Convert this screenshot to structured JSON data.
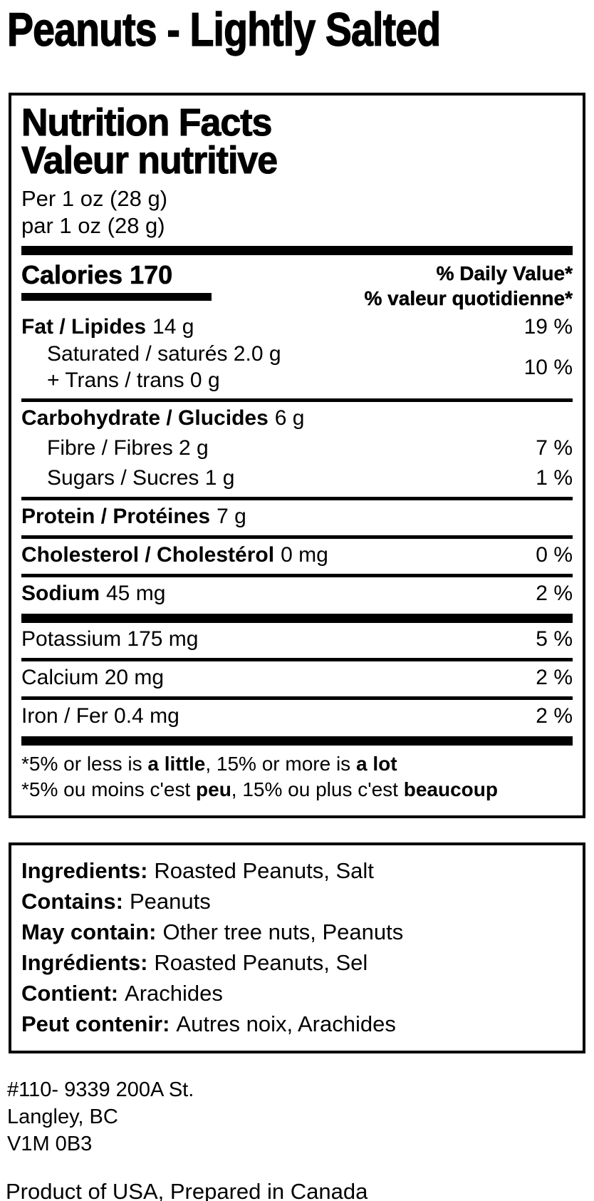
{
  "page": {
    "title": "Peanuts - Lightly Salted",
    "origin_line": "Product of USA, Prepared in Canada"
  },
  "nutrition": {
    "title_en": "Nutrition Facts",
    "title_fr": "Valeur nutritive",
    "serving_en": "Per 1 oz (28 g)",
    "serving_fr": "par 1 oz (28 g)",
    "calories_label": "Calories 170",
    "dv_header_en": "% Daily Value*",
    "dv_header_fr": "% valeur quotidienne*",
    "rows": {
      "fat": {
        "name": "Fat / Lipides",
        "amount": "14 g",
        "dv": "19 %"
      },
      "sat_trans": {
        "line1": "Saturated / saturés 2.0 g",
        "line2": "+ Trans / trans 0 g",
        "dv": "10 %"
      },
      "carb": {
        "name": "Carbohydrate / Glucides",
        "amount": "6 g"
      },
      "fibre": {
        "name": "Fibre / Fibres 2 g",
        "dv": "7 %"
      },
      "sugars": {
        "name": "Sugars / Sucres 1 g",
        "dv": "1 %"
      },
      "protein": {
        "name": "Protein / Protéines",
        "amount": "7 g"
      },
      "cholesterol": {
        "name": "Cholesterol / Cholestérol",
        "amount": "0 mg",
        "dv": "0 %"
      },
      "sodium": {
        "name": "Sodium",
        "amount": "45 mg",
        "dv": "2 %"
      },
      "potassium": {
        "name": "Potassium 175 mg",
        "dv": "5 %"
      },
      "calcium": {
        "name": "Calcium 20 mg",
        "dv": "2 %"
      },
      "iron": {
        "name": "Iron / Fer 0.4 mg",
        "dv": "2 %"
      }
    },
    "footnote_en": {
      "pre": "*5% or less is ",
      "bold1": "a little",
      "mid": ", 15% or more is ",
      "bold2": "a lot"
    },
    "footnote_fr": {
      "pre": "*5% ou moins c'est ",
      "bold1": "peu",
      "mid": ", 15% ou plus c'est ",
      "bold2": "beaucoup"
    }
  },
  "ingredients": {
    "lines": {
      "0": {
        "label": "Ingredients:",
        "text": "Roasted Peanuts, Salt"
      },
      "1": {
        "label": "Contains:",
        "text": "Peanuts"
      },
      "2": {
        "label": "May contain:",
        "text": "Other tree nuts, Peanuts"
      },
      "3": {
        "label": "Ingrédients:",
        "text": "Roasted Peanuts, Sel"
      },
      "4": {
        "label": "Contient:",
        "text": "Arachides"
      },
      "5": {
        "label": "Peut contenir:",
        "text": "Autres noix, Arachides"
      }
    }
  },
  "address": {
    "line1": "#110- 9339 200A St.",
    "line2": "Langley, BC",
    "line3": "V1M 0B3"
  },
  "colors": {
    "text": "#000000",
    "background": "#ffffff",
    "border": "#000000"
  }
}
